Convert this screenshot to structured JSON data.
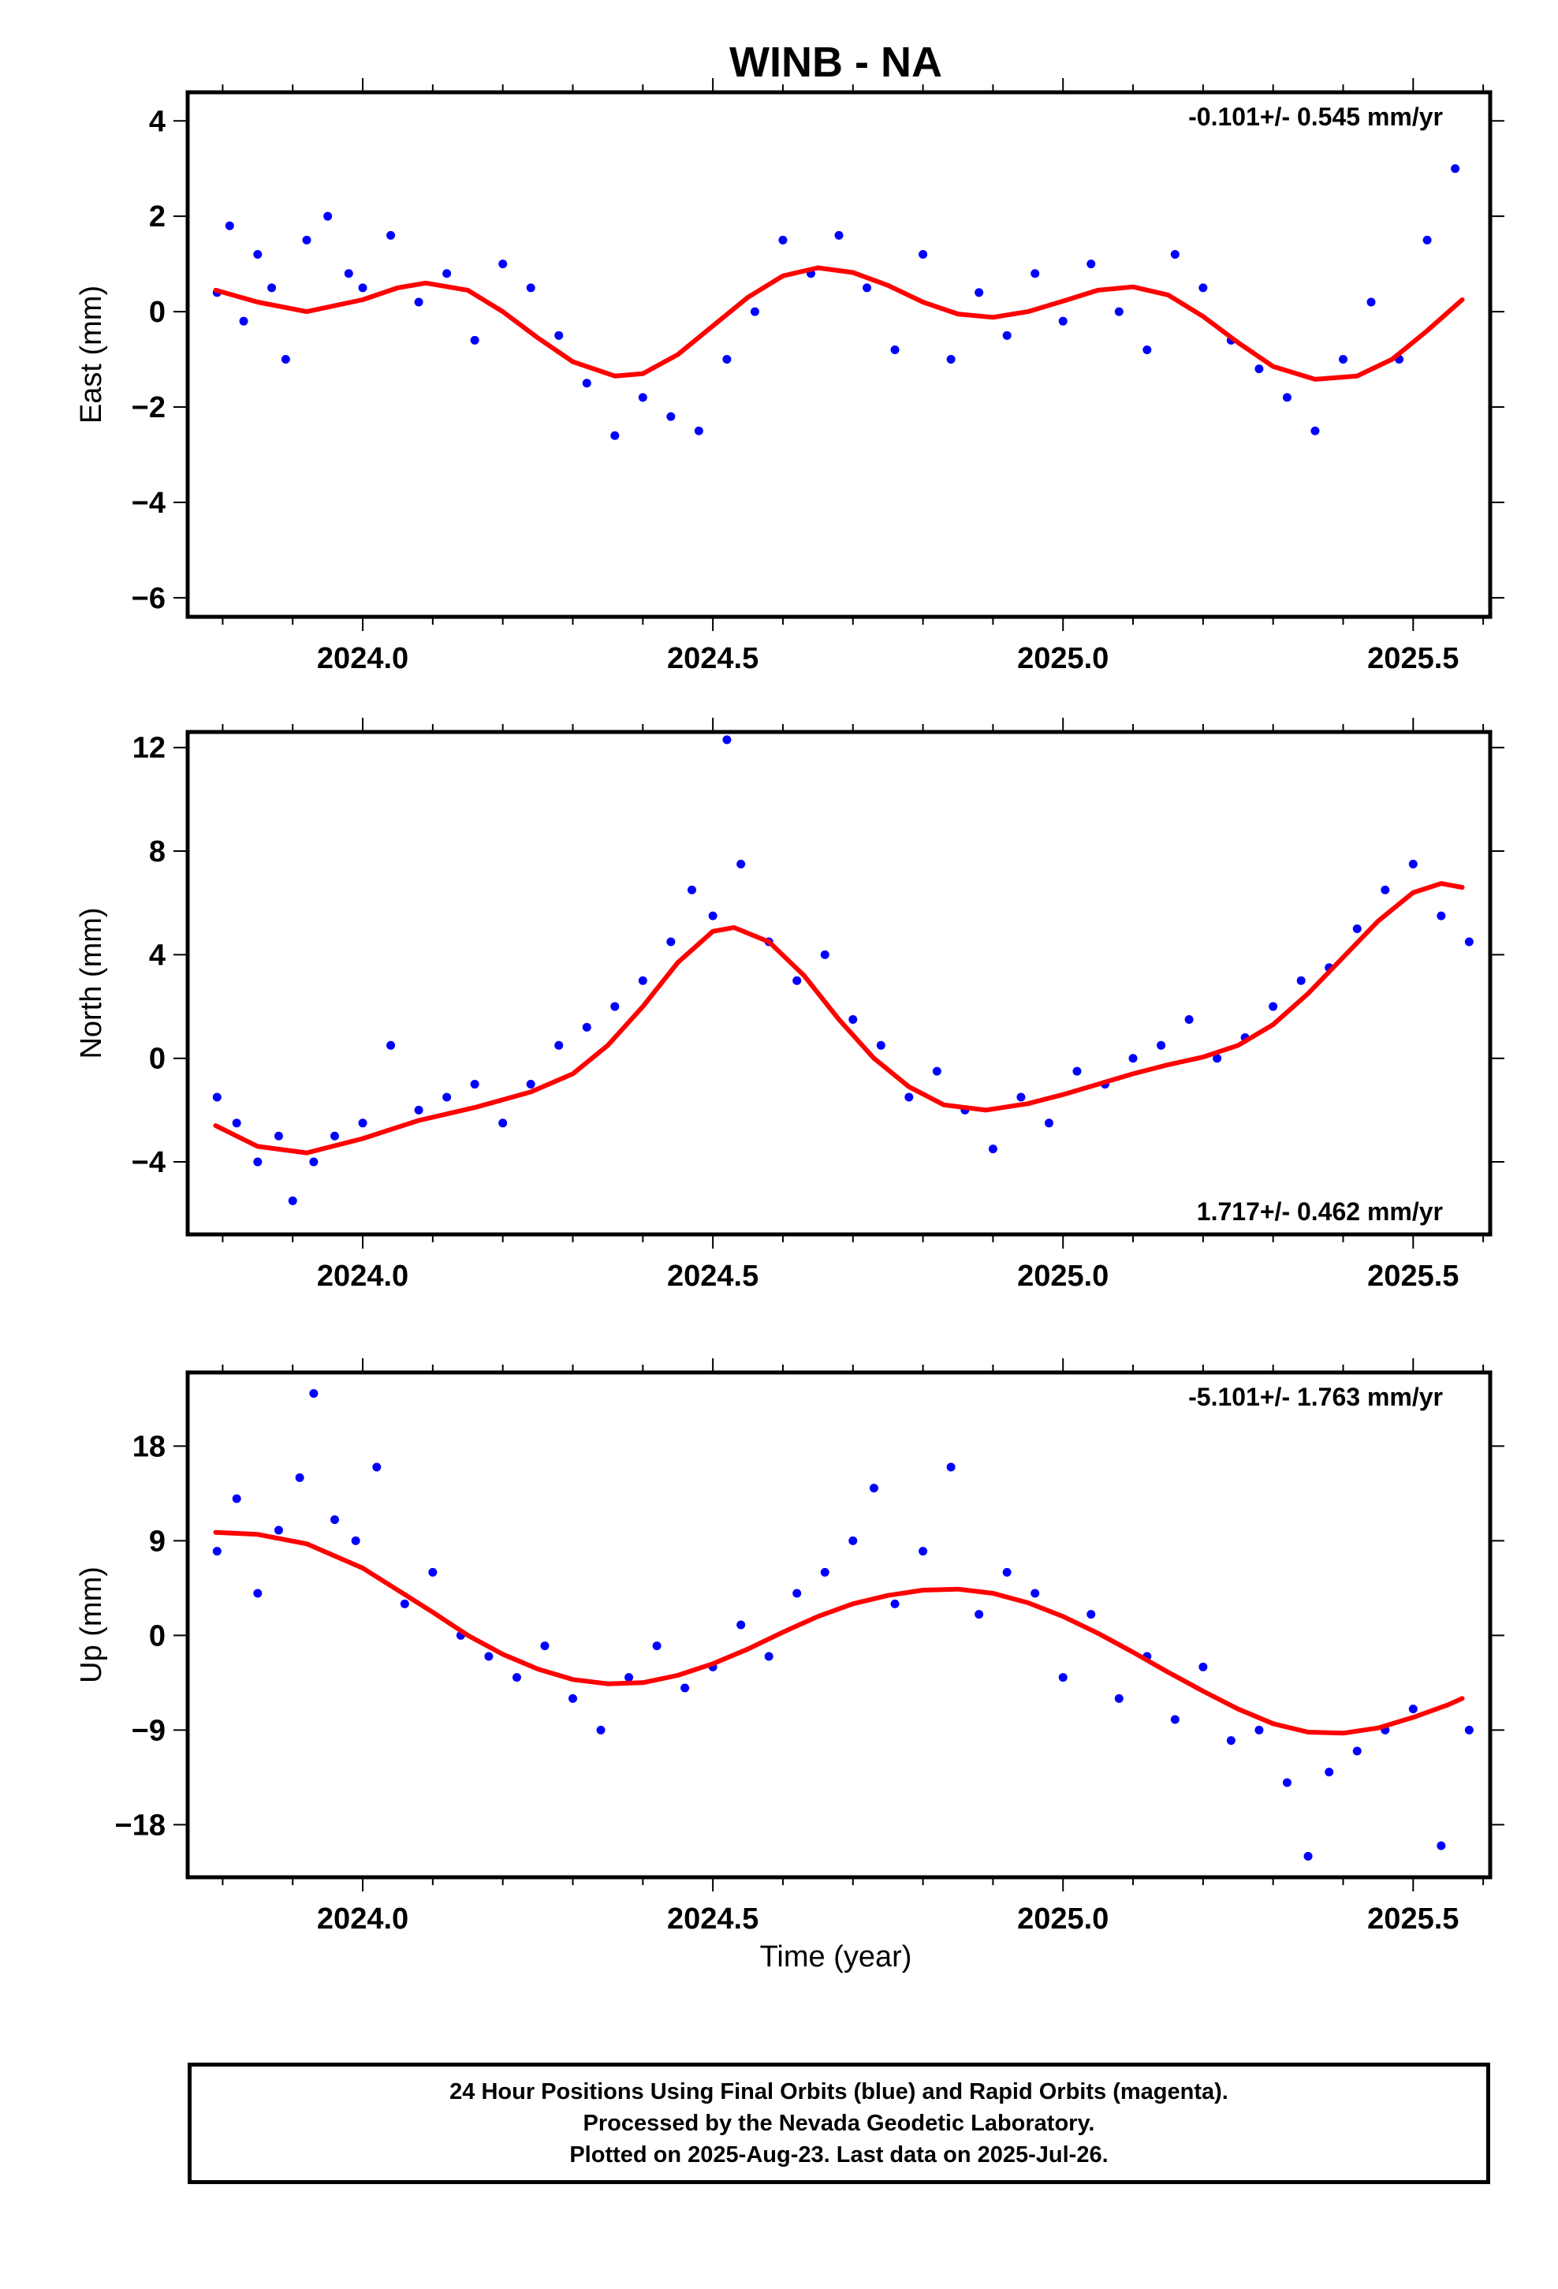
{
  "title": "WINB - NA",
  "xlabel": "Time (year)",
  "footer": {
    "line1": "24 Hour Positions Using Final Orbits (blue) and Rapid Orbits (magenta).",
    "line2": "Processed by the Nevada Geodetic Laboratory.",
    "line3": "Plotted on 2025-Aug-23. Last data on 2025-Jul-26."
  },
  "colors": {
    "points": "#0000ff",
    "fit": "#ff0000",
    "axes": "#000000"
  },
  "chart_data": [
    {
      "type": "scatter",
      "ylabel": "East (mm)",
      "rate_label": "-0.101+/- 0.545 mm/yr",
      "rate_position": "top-right",
      "xlim": [
        2023.75,
        2025.61
      ],
      "ylim": [
        -6.4,
        4.6
      ],
      "xticks": [
        "2024.0",
        "2024.5",
        "2025.0",
        "2025.5"
      ],
      "xtick_values": [
        2024.0,
        2024.5,
        2025.0,
        2025.5
      ],
      "yticks": [
        4,
        2,
        0,
        -2,
        -4,
        -6
      ],
      "series": [
        {
          "name": "",
          "kind": "points",
          "x": [
            2023.792,
            2023.81,
            2023.83,
            2023.85,
            2023.87,
            2023.89,
            2023.92,
            2023.95,
            2023.98,
            2024.0,
            2024.04,
            2024.08,
            2024.12,
            2024.16,
            2024.2,
            2024.24,
            2024.28,
            2024.32,
            2024.36,
            2024.4,
            2024.44,
            2024.48,
            2024.52,
            2024.56,
            2024.6,
            2024.64,
            2024.68,
            2024.72,
            2024.76,
            2024.8,
            2024.84,
            2024.88,
            2024.92,
            2024.96,
            2025.0,
            2025.04,
            2025.08,
            2025.12,
            2025.16,
            2025.2,
            2025.24,
            2025.28,
            2025.32,
            2025.36,
            2025.4,
            2025.44,
            2025.48,
            2025.52,
            2025.56
          ],
          "y": [
            0.4,
            1.8,
            -0.2,
            1.2,
            0.5,
            -1.0,
            1.5,
            2.0,
            0.8,
            0.5,
            1.6,
            0.2,
            0.8,
            -0.6,
            1.0,
            0.5,
            -0.5,
            -1.5,
            -2.6,
            -1.8,
            -2.2,
            -2.5,
            -1.0,
            0.0,
            1.5,
            0.8,
            1.6,
            0.5,
            -0.8,
            1.2,
            -1.0,
            0.4,
            -0.5,
            0.8,
            -0.2,
            1.0,
            0.0,
            -0.8,
            1.2,
            0.5,
            -0.6,
            -1.2,
            -1.8,
            -2.5,
            -1.0,
            0.2,
            -1.0,
            1.5,
            3.0
          ]
        },
        {
          "name": "",
          "kind": "fit",
          "x": [
            2023.79,
            2023.85,
            2023.92,
            2024.0,
            2024.05,
            2024.09,
            2024.15,
            2024.2,
            2024.25,
            2024.3,
            2024.36,
            2024.4,
            2024.45,
            2024.5,
            2024.55,
            2024.6,
            2024.65,
            2024.7,
            2024.75,
            2024.8,
            2024.85,
            2024.9,
            2024.95,
            2025.0,
            2025.05,
            2025.1,
            2025.15,
            2025.2,
            2025.25,
            2025.3,
            2025.36,
            2025.42,
            2025.47,
            2025.52,
            2025.57
          ],
          "y": [
            0.45,
            0.2,
            0.0,
            0.25,
            0.5,
            0.6,
            0.45,
            0.0,
            -0.55,
            -1.05,
            -1.35,
            -1.3,
            -0.9,
            -0.3,
            0.3,
            0.75,
            0.92,
            0.82,
            0.55,
            0.2,
            -0.05,
            -0.12,
            0.0,
            0.22,
            0.45,
            0.52,
            0.35,
            -0.1,
            -0.65,
            -1.15,
            -1.42,
            -1.35,
            -1.0,
            -0.4,
            0.25
          ]
        }
      ]
    },
    {
      "type": "scatter",
      "ylabel": "North (mm)",
      "rate_label": "1.717+/- 0.462 mm/yr",
      "rate_position": "bottom-right",
      "xlim": [
        2023.75,
        2025.61
      ],
      "ylim": [
        -6.8,
        12.6
      ],
      "xticks": [
        "2024.0",
        "2024.5",
        "2025.0",
        "2025.5"
      ],
      "xtick_values": [
        2024.0,
        2024.5,
        2025.0,
        2025.5
      ],
      "yticks": [
        12,
        8,
        4,
        0,
        -4
      ],
      "series": [
        {
          "name": "",
          "kind": "points",
          "x": [
            2023.792,
            2023.82,
            2023.85,
            2023.88,
            2023.9,
            2023.93,
            2023.96,
            2024.0,
            2024.04,
            2024.08,
            2024.12,
            2024.16,
            2024.2,
            2024.24,
            2024.28,
            2024.32,
            2024.36,
            2024.4,
            2024.44,
            2024.47,
            2024.5,
            2024.52,
            2024.54,
            2024.58,
            2024.62,
            2024.66,
            2024.7,
            2024.74,
            2024.78,
            2024.82,
            2024.86,
            2024.9,
            2024.94,
            2024.98,
            2025.02,
            2025.06,
            2025.1,
            2025.14,
            2025.18,
            2025.22,
            2025.26,
            2025.3,
            2025.34,
            2025.38,
            2025.42,
            2025.46,
            2025.5,
            2025.54,
            2025.58
          ],
          "y": [
            -1.5,
            -2.5,
            -4.0,
            -3.0,
            -5.5,
            -4.0,
            -3.0,
            -2.5,
            0.5,
            -2.0,
            -1.5,
            -1.0,
            -2.5,
            -1.0,
            0.5,
            1.2,
            2.0,
            3.0,
            4.5,
            6.5,
            5.5,
            12.3,
            7.5,
            4.5,
            3.0,
            4.0,
            1.5,
            0.5,
            -1.5,
            -0.5,
            -2.0,
            -3.5,
            -1.5,
            -2.5,
            -0.5,
            -1.0,
            0.0,
            0.5,
            1.5,
            0.0,
            0.8,
            2.0,
            3.0,
            3.5,
            5.0,
            6.5,
            7.5,
            5.5,
            4.5
          ]
        },
        {
          "name": "",
          "kind": "fit",
          "x": [
            2023.79,
            2023.85,
            2023.92,
            2024.0,
            2024.08,
            2024.16,
            2024.24,
            2024.3,
            2024.35,
            2024.4,
            2024.45,
            2024.5,
            2024.53,
            2024.58,
            2024.63,
            2024.68,
            2024.73,
            2024.78,
            2024.83,
            2024.89,
            2024.95,
            2025.0,
            2025.05,
            2025.1,
            2025.15,
            2025.2,
            2025.25,
            2025.3,
            2025.35,
            2025.4,
            2025.45,
            2025.5,
            2025.54,
            2025.57
          ],
          "y": [
            -2.6,
            -3.4,
            -3.65,
            -3.1,
            -2.4,
            -1.9,
            -1.3,
            -0.6,
            0.5,
            2.0,
            3.7,
            4.9,
            5.05,
            4.5,
            3.2,
            1.5,
            0.0,
            -1.1,
            -1.8,
            -2.0,
            -1.75,
            -1.4,
            -1.0,
            -0.6,
            -0.25,
            0.05,
            0.5,
            1.3,
            2.5,
            3.9,
            5.3,
            6.4,
            6.75,
            6.6
          ]
        }
      ]
    },
    {
      "type": "scatter",
      "ylabel": "Up (mm)",
      "rate_label": "-5.101+/- 1.763 mm/yr",
      "rate_position": "top-right",
      "xlim": [
        2023.75,
        2025.61
      ],
      "ylim": [
        -23,
        25
      ],
      "xticks": [
        "2024.0",
        "2024.5",
        "2025.0",
        "2025.5"
      ],
      "xtick_values": [
        2024.0,
        2024.5,
        2025.0,
        2025.5
      ],
      "yticks": [
        18,
        9,
        0,
        -9,
        -18
      ],
      "series": [
        {
          "name": "",
          "kind": "points",
          "x": [
            2023.792,
            2023.82,
            2023.85,
            2023.88,
            2023.91,
            2023.93,
            2023.96,
            2023.99,
            2024.02,
            2024.06,
            2024.1,
            2024.14,
            2024.18,
            2024.22,
            2024.26,
            2024.3,
            2024.34,
            2024.38,
            2024.42,
            2024.46,
            2024.5,
            2024.54,
            2024.58,
            2024.62,
            2024.66,
            2024.7,
            2024.73,
            2024.76,
            2024.8,
            2024.84,
            2024.88,
            2024.92,
            2024.96,
            2025.0,
            2025.04,
            2025.08,
            2025.12,
            2025.16,
            2025.2,
            2025.24,
            2025.28,
            2025.32,
            2025.35,
            2025.38,
            2025.42,
            2025.46,
            2025.5,
            2025.54,
            2025.58
          ],
          "y": [
            8.0,
            13.0,
            4.0,
            10.0,
            15.0,
            23.0,
            11.0,
            9.0,
            16.0,
            3.0,
            6.0,
            0.0,
            -2.0,
            -4.0,
            -1.0,
            -6.0,
            -9.0,
            -4.0,
            -1.0,
            -5.0,
            -3.0,
            1.0,
            -2.0,
            4.0,
            6.0,
            9.0,
            14.0,
            3.0,
            8.0,
            16.0,
            2.0,
            6.0,
            4.0,
            -4.0,
            2.0,
            -6.0,
            -2.0,
            -8.0,
            -3.0,
            -10.0,
            -9.0,
            -14.0,
            -21.0,
            -13.0,
            -11.0,
            -9.0,
            -7.0,
            -20.0,
            -9.0
          ]
        },
        {
          "name": "",
          "kind": "fit",
          "x": [
            2023.79,
            2023.85,
            2023.92,
            2024.0,
            2024.05,
            2024.1,
            2024.15,
            2024.2,
            2024.25,
            2024.3,
            2024.35,
            2024.4,
            2024.45,
            2024.5,
            2024.55,
            2024.6,
            2024.65,
            2024.7,
            2024.75,
            2024.8,
            2024.85,
            2024.9,
            2024.95,
            2025.0,
            2025.05,
            2025.1,
            2025.15,
            2025.2,
            2025.25,
            2025.3,
            2025.35,
            2025.4,
            2025.45,
            2025.5,
            2025.55,
            2025.57
          ],
          "y": [
            9.8,
            9.6,
            8.7,
            6.4,
            4.3,
            2.2,
            0.0,
            -1.8,
            -3.2,
            -4.2,
            -4.6,
            -4.5,
            -3.8,
            -2.7,
            -1.3,
            0.3,
            1.8,
            3.0,
            3.8,
            4.3,
            4.4,
            4.0,
            3.1,
            1.8,
            0.2,
            -1.6,
            -3.5,
            -5.3,
            -7.0,
            -8.4,
            -9.2,
            -9.3,
            -8.8,
            -7.8,
            -6.6,
            -6.0
          ]
        }
      ]
    }
  ]
}
